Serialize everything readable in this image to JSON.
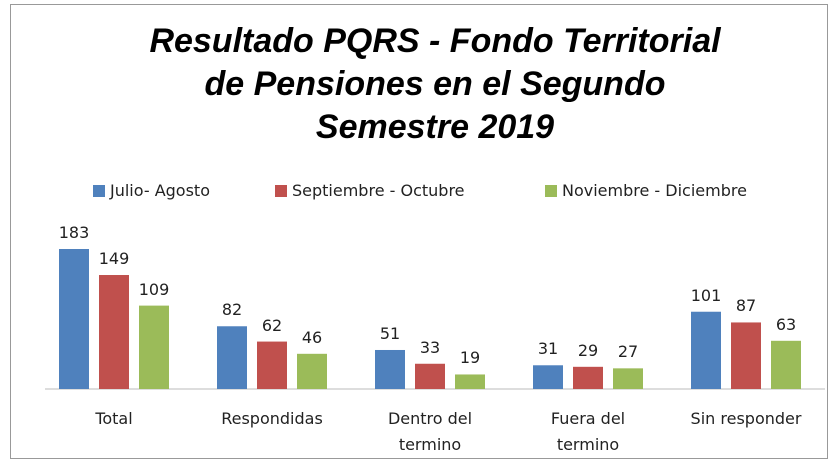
{
  "chart_data": {
    "type": "bar",
    "title": "Resultado PQRS - Fondo Territorial de Pensiones en el Segundo Semestre 2019",
    "categories": [
      "Total",
      "Respondidas",
      "Dentro del termino",
      "Fuera del termino",
      "Sin responder"
    ],
    "series": [
      {
        "name": "Julio- Agosto",
        "color": "#4f81bd",
        "values": [
          183,
          82,
          51,
          31,
          101
        ]
      },
      {
        "name": "Septiembre - Octubre",
        "color": "#c0504d",
        "values": [
          149,
          62,
          33,
          29,
          87
        ]
      },
      {
        "name": "Noviembre - Diciembre",
        "color": "#9bbb59",
        "values": [
          109,
          46,
          19,
          27,
          63
        ]
      }
    ],
    "legend": "top"
  }
}
